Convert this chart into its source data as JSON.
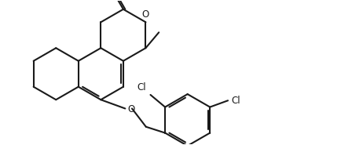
{
  "bg": "#ffffff",
  "lc": "#1a1a1a",
  "lw": 1.5,
  "r": 0.38,
  "fig_w": 4.34,
  "fig_h": 1.85,
  "dpi": 100,
  "xlim": [
    -0.15,
    4.55
  ],
  "ylim": [
    -0.25,
    1.85
  ]
}
